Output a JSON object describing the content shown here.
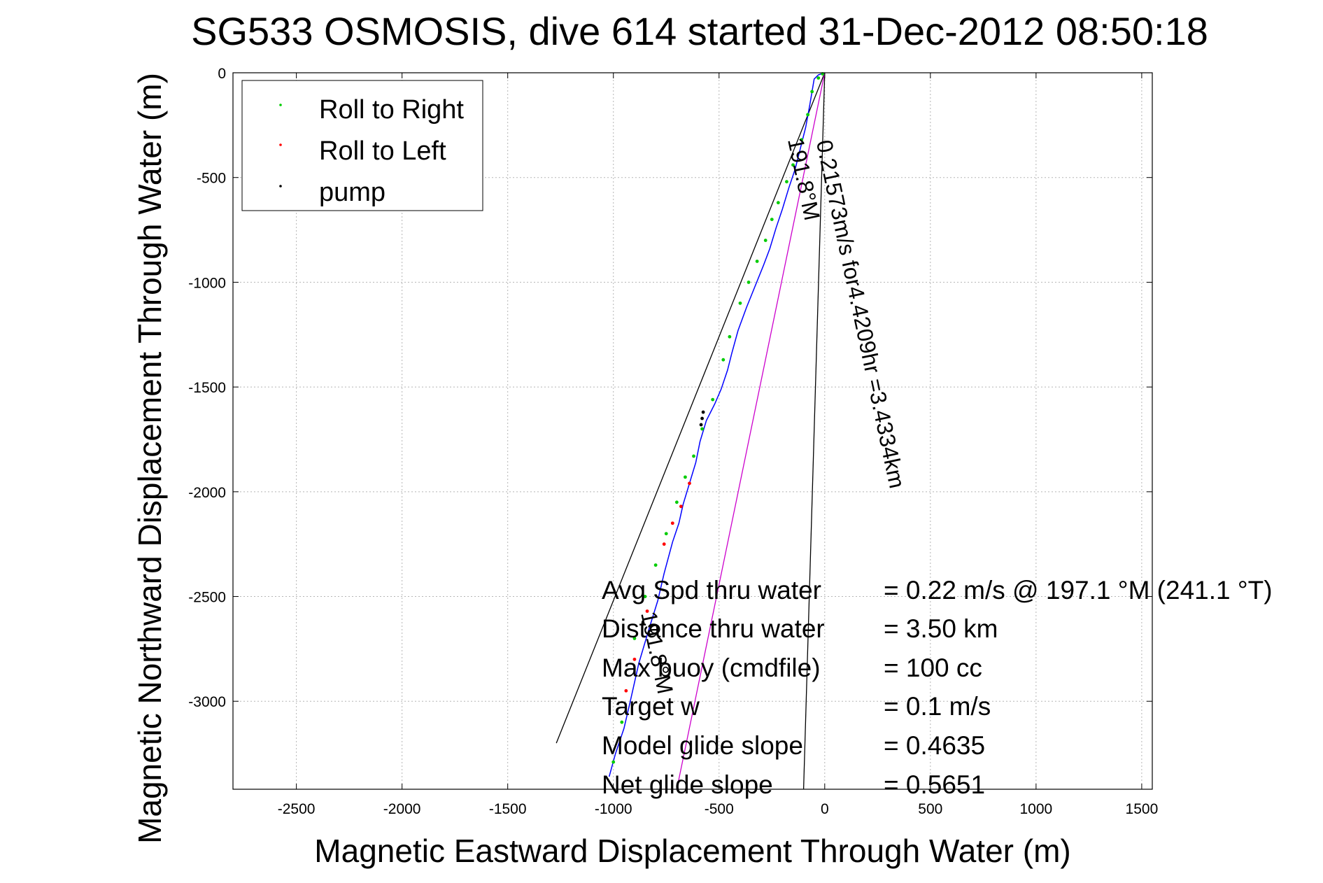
{
  "chart_data": {
    "type": "scatter",
    "title": "SG533 OSMOSIS, dive 614 started 31-Dec-2012 08:50:18",
    "xlabel": "Magnetic Eastward Displacement Through Water (m)",
    "ylabel": "Magnetic Northward Displacement Through Water (m)",
    "xlim": [
      -2800,
      1550
    ],
    "ylim": [
      -3420,
      0
    ],
    "xticks": [
      -2500,
      -2000,
      -1500,
      -1000,
      -500,
      0,
      500,
      1000,
      1500
    ],
    "yticks": [
      0,
      -500,
      -1000,
      -1500,
      -2000,
      -2500,
      -3000
    ],
    "grid": true,
    "legend_placement": "top-left",
    "legend": [
      {
        "label": "Roll to Right",
        "color": "#00cc00"
      },
      {
        "label": "Roll to Left",
        "color": "#ff0000"
      },
      {
        "label": "pump",
        "color": "#000000"
      }
    ],
    "track": {
      "color": "#0000ff",
      "x": [
        0,
        -30,
        -50,
        -70,
        -90,
        -120,
        -140,
        -170,
        -200,
        -230,
        -260,
        -290,
        -330,
        -370,
        -410,
        -440,
        -460,
        -490,
        -520,
        -560,
        -590,
        -610,
        -640,
        -670,
        -690,
        -720,
        -760,
        -790,
        -830,
        -880,
        -920,
        -950,
        -990,
        -1020
      ],
      "y": [
        0,
        -10,
        -30,
        -150,
        -260,
        -380,
        -460,
        -550,
        -650,
        -740,
        -840,
        -920,
        -1020,
        -1120,
        -1230,
        -1340,
        -1420,
        -1510,
        -1580,
        -1660,
        -1760,
        -1860,
        -1960,
        -2060,
        -2150,
        -2240,
        -2390,
        -2520,
        -2650,
        -2820,
        -3000,
        -3130,
        -3250,
        -3360
      ]
    },
    "roll_right": {
      "x": [
        -10,
        -30,
        -60,
        -80,
        -110,
        -150,
        -180,
        -220,
        -250,
        -280,
        -320,
        -360,
        -400,
        -450,
        -480,
        -530,
        -580,
        -620,
        -660,
        -700,
        -750,
        -800,
        -850,
        -900,
        -960,
        -1000
      ],
      "y": [
        -5,
        -25,
        -90,
        -200,
        -320,
        -440,
        -520,
        -620,
        -700,
        -800,
        -900,
        -1000,
        -1100,
        -1260,
        -1370,
        -1560,
        -1700,
        -1830,
        -1930,
        -2050,
        -2200,
        -2350,
        -2500,
        -2700,
        -3100,
        -3290
      ]
    },
    "roll_left": {
      "x": [
        -640,
        -680,
        -720,
        -760,
        -840,
        -900,
        -940
      ],
      "y": [
        -1960,
        -2070,
        -2150,
        -2250,
        -2570,
        -2800,
        -2950
      ]
    },
    "pump": {
      "x": [
        -575,
        -580,
        -585
      ],
      "y": [
        -1620,
        -1650,
        -1680
      ]
    },
    "reference_lines": [
      {
        "color": "#000000",
        "x": [
          0,
          -1270
        ],
        "y": [
          0,
          -3200
        ]
      },
      {
        "color": "#000000",
        "x": [
          0,
          -100
        ],
        "y": [
          0,
          -3420
        ]
      },
      {
        "color": "#cc00cc",
        "x": [
          0,
          -700
        ],
        "y": [
          0,
          -3420
        ]
      }
    ],
    "annotations": [
      {
        "text": "0.21573m/s for4.4209hr =3.4334km",
        "x": -40,
        "y": -330,
        "rotation": 78
      },
      {
        "text": "191.8°M",
        "x": -175,
        "y": -320,
        "rotation": 78
      },
      {
        "text": "191.8°M",
        "x": -870,
        "y": -2580,
        "rotation": 78
      }
    ],
    "stats": [
      {
        "label": "Avg Spd thru water",
        "value": "=  0.22 m/s @ 197.1 °M (241.1 °T)"
      },
      {
        "label": "Distance thru water",
        "value": "=  3.50 km"
      },
      {
        "label": "Max buoy (cmdfile)",
        "value": "= 100 cc"
      },
      {
        "label": "Target w",
        "value": "= 0.1 m/s"
      },
      {
        "label": "Model glide slope",
        "value": "= 0.4635"
      },
      {
        "label": "Net glide slope",
        "value": "= 0.5651"
      }
    ]
  }
}
